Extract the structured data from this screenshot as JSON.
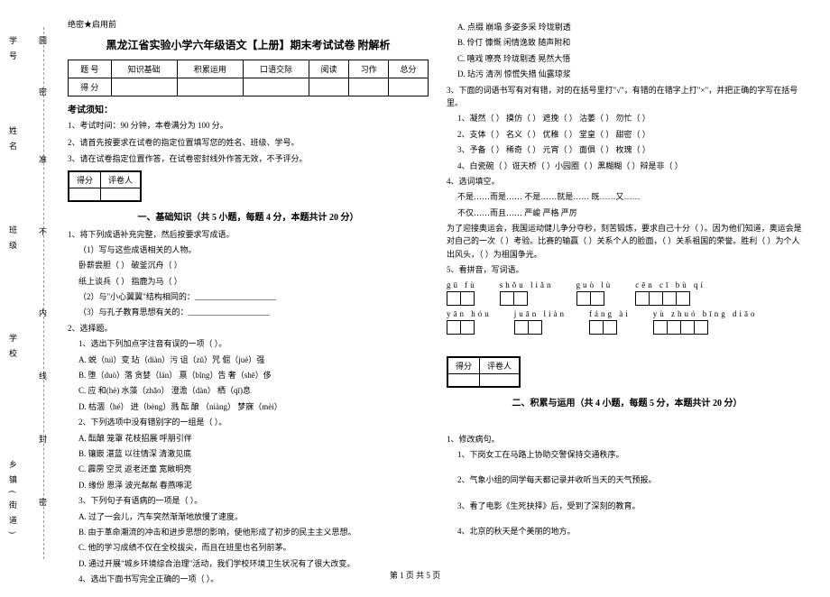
{
  "binding": {
    "labels": [
      "学号",
      "姓名",
      "班级",
      "学校",
      "乡镇(街道)"
    ],
    "chars": [
      "圆",
      "密",
      "准",
      "不",
      "内",
      "线",
      "封",
      "密"
    ]
  },
  "secret": "绝密★启用前",
  "title": "黑龙江省实验小学六年级语文【上册】期末考试试卷 附解析",
  "score_table": {
    "headers": [
      "题  号",
      "知识基础",
      "积累运用",
      "口语交际",
      "阅读",
      "习作",
      "总分"
    ],
    "row2": "得  分"
  },
  "notice": {
    "title": "考试须知：",
    "items": [
      "1、考试时间：90 分钟，本卷满分为 100 分。",
      "2、请首先按要求在试卷的指定位置填写您的姓名、班级、学号。",
      "3、请在试卷指定位置作答，在试卷密封线外作答无效，不予评分。"
    ]
  },
  "scorebox": {
    "c1": "得分",
    "c2": "评卷人"
  },
  "section1": {
    "title": "一、基础知识（共 5 小题，每题 4 分，本题共计 20 分）",
    "q1": {
      "stem": "1、将下列成语补充完整，然后按要求写成语。",
      "sub1": "（1）写与这些成语相关的人物。",
      "line1": "卧薪尝胆（        ）    破釜沉舟（        ）",
      "line2": "纸上谈兵（        ）    指鹿为马（        ）",
      "sub2": "（2）与\"小心翼翼\"结构相同的：____________________",
      "sub3": "（3）与孔子教育思想有关的：____________________"
    },
    "q2": {
      "stem": "2、选择题。",
      "s1": "1、选出下列加点字注音有误的一项（        ）。",
      "a": "A. 蜕（tuì）变      玷（diàn）污      诅（zǔ）咒         倔（juè）强",
      "b": "B. 堕（duò）落     贪婪（lán）        禀（bǐng）告      奢（shē）侈",
      "c": "C. 应 和(hè)        水藻（zhǎo）      澄澹（dàn）        栖（qī)息",
      "d": "D. 枯涸（hé）      迸（bèng）溅      酝 酿 （niàng）   梦寐（mèi）",
      "s2": "2、下列选项中没有错别字的一组是（        ）。",
      "a2": "A. 酝酿    笼罩    花枝招展    呼朋引伴",
      "b2": "B. 镶嵌    湛蓝    以往情深    清澈见底",
      "c2": "C. 霹雳    空灵    返老还童    宽敞明亮",
      "d2": "D. 缘份    恩泽    波光粼粼    春燕啄泥",
      "s3": "3、下列句子有语病的一项是（        ）。",
      "a3": "A. 过了一会儿，汽车突然渐渐地放慢了速度。",
      "b3": "B. 由于革命潮流的冲击和进步思想的影响，使他形成了初步的民主主义思想。",
      "c3": "C. 他的学习成绩不仅在全校拔尖，而且在班里也名列前茅。",
      "d3": "D. 通过开展\"城乡环境综合治理\"活动，我们学校环境卫生状况有了很大改变。",
      "s4": "4、选出下面书写完全正确的一项（        ）。"
    }
  },
  "col2": {
    "opt": {
      "a": "A. 点缀    崩塌    多姿多采    玲珑剔透",
      "b": "B. 伶仃    慷慨    闲情逸致    随声附和",
      "c": "C. 嘻戏    嘹亮    玲珑剔透    晃然大悟",
      "d": "D. 玷污    清洌    惊慌失措    仙露琼浆"
    },
    "q3": {
      "stem": "3、下面的词语书写有对有错，对的在括号里打\"√\"，有错的在错字上打\"×\"，并把正确的字写在括号里。",
      "l1": "1、凝然（    ） 摸仿（    ） 遮挽（    ） 沽萎（    ） 勿忙（    ）",
      "l2": "2、支体（    ） 名义（    ） 优稚（    ） 堂皇（    ） 甜密（    ）",
      "l3": "3、予备（    ） 稀奇（    ） 元宵（    ） 面俱（    ） 枚瑰（    ）",
      "l4": "4、白瓷碗（    ）诳天桥（    ）小园圈（    ）黑糊糊（    ）辩是非（    ）"
    },
    "q4": {
      "stem": "4、选词填空。",
      "l1": "不是……而是……        不是……就是……        既……又……",
      "l2": "不仅……而且……        严峻      严格      严厉",
      "l3": "    为了迎接奥运会，我国运动健儿争分夺秒，刻苦锻炼，要求自己十分（        ）。因为他们知道，奥运会是对自己的一次（        ）考验。比赛的输赢（        ）关系个人的脸面，（        ）关系祖国的荣誉。胜利（        ）为个人出风头，（        ）为祖国争光。"
    },
    "q5": {
      "stem": "5、看拼音，写词语。",
      "row1": [
        {
          "py": "gū  fù",
          "n": 2
        },
        {
          "py": "shǒu liǎn",
          "n": 2
        },
        {
          "py": "guò  lù",
          "n": 2
        },
        {
          "py": "cēn  cī  bù  qí",
          "n": 4
        }
      ],
      "row2": [
        {
          "py": "yān  hóu",
          "n": 2
        },
        {
          "py": "juān liàn",
          "n": 2
        },
        {
          "py": "fáng  ài",
          "n": 2
        },
        {
          "py": "yù  zhuó bīng diāo",
          "n": 4
        }
      ]
    }
  },
  "section2": {
    "title": "二、积累与运用（共 4 小题，每题 5 分，本题共计 20 分）",
    "q1": {
      "stem": "1、修改病句。",
      "l1": "1、下岗女工在马路上协助交警保持交通秩序。",
      "l2": "2、气象小组的同学每天都记录并收听当天的天气预报。",
      "l3": "3、看了电影《生死抉择》后，受到了深刻的教育。",
      "l4": "4、北京的秋天是个美丽的地方。"
    }
  },
  "footer": "第 1 页 共 5 页"
}
